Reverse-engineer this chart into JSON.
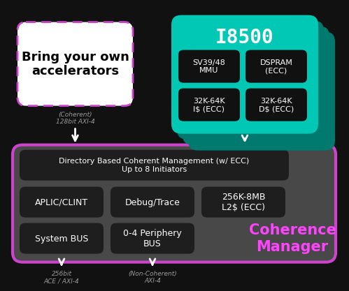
{
  "bg_color": "#111111",
  "teal": "#00c8b4",
  "teal_shadow": "#007a6e",
  "purple": "#cc44cc",
  "white": "#ffffff",
  "black": "#000000",
  "gray_outer": "#555555",
  "dark_box": "#1e1e1e",
  "light_gray": "#999999",
  "magenta": "#ff44cc",
  "i8500_title": "I8500",
  "accel_text": "Bring your own\naccelerators",
  "coherent_label": "(Coherent)\n128bit AXI-4",
  "dir_text": "Directory Based Coherent Management (w/ ECC)\nUp to 8 Initiators",
  "box1_text": "APLIC/CLINT",
  "box2_text": "Debug/Trace",
  "box3_text": "256K-8MB\nL2$ (ECC)",
  "box4_text": "System BUS",
  "box5_text": "0-4 Periphery\nBUS",
  "coherence_mgr_text": "Coherence\nManager",
  "sv_mmu_text": "SV39/48\nMMU",
  "dspram_text": "DSPRAM\n(ECC)",
  "icache_text": "32K-64K\nI$ (ECC)",
  "dcache_text": "32K-64K\nD$ (ECC)",
  "bottom_left_label": "256bit\nACE / AXI-4",
  "bottom_mid_label": "(Non-Coherent)\nAXI-4",
  "fig_width": 4.8,
  "fig_height": 3.87
}
